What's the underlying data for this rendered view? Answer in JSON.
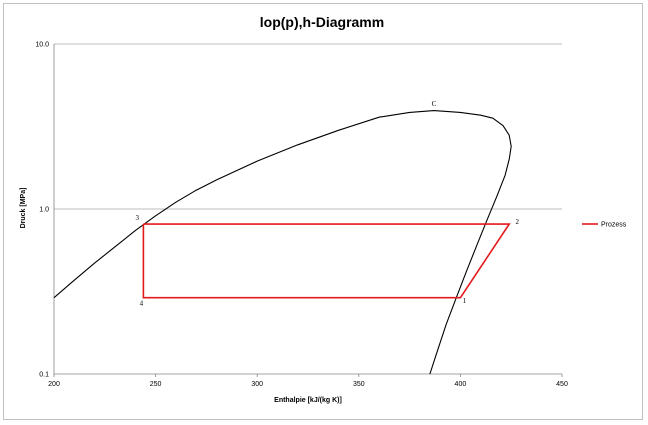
{
  "chart_data": {
    "type": "line",
    "title": "lop(p),h-Diagramm",
    "xlabel": "Enthalpie [kJ/(kg K)]",
    "ylabel": "Druck [MPa]",
    "xlim": [
      200,
      450
    ],
    "ylim": [
      0.1,
      10.0
    ],
    "y_scale": "log",
    "x_ticks": [
      200,
      250,
      300,
      350,
      400,
      450
    ],
    "y_ticks": [
      {
        "value": 0.1,
        "label": "0.1"
      },
      {
        "value": 1.0,
        "label": "1.0"
      },
      {
        "value": 10.0,
        "label": "10.0"
      }
    ],
    "grid": "horizontal major lines at 1.0 and 10.0",
    "legend_position": "right",
    "colors": {
      "curve": "#000000",
      "process": "#e31a1c",
      "grid": "#a6a6a6"
    },
    "series": [
      {
        "kind": "saturation_curve",
        "points": [
          [
            200,
            0.29
          ],
          [
            210,
            0.37
          ],
          [
            220,
            0.47
          ],
          [
            230,
            0.59
          ],
          [
            240,
            0.74
          ],
          [
            250,
            0.91
          ],
          [
            260,
            1.1
          ],
          [
            270,
            1.3
          ],
          [
            280,
            1.5
          ],
          [
            300,
            1.95
          ],
          [
            320,
            2.45
          ],
          [
            340,
            3.0
          ],
          [
            360,
            3.6
          ],
          [
            375,
            3.85
          ],
          [
            387,
            3.95
          ],
          [
            400,
            3.85
          ],
          [
            410,
            3.7
          ],
          [
            416,
            3.55
          ],
          [
            421,
            3.2
          ],
          [
            424,
            2.8
          ],
          [
            425,
            2.4
          ],
          [
            424,
            2.0
          ],
          [
            422,
            1.6
          ],
          [
            418,
            1.2
          ],
          [
            413,
            0.85
          ],
          [
            408,
            0.6
          ],
          [
            403,
            0.42
          ],
          [
            398,
            0.29
          ],
          [
            393,
            0.2
          ],
          [
            388,
            0.13
          ],
          [
            385,
            0.1
          ]
        ]
      },
      {
        "kind": "process",
        "name": "Prozess",
        "points": [
          [
            244,
            0.81
          ],
          [
            424,
            0.81
          ],
          [
            400,
            0.29
          ],
          [
            244,
            0.29
          ],
          [
            244,
            0.81
          ]
        ]
      }
    ],
    "annotations": [
      {
        "text": "C",
        "x": 387,
        "y": 4.2
      },
      {
        "text": "3",
        "x": 241,
        "y": 0.86
      },
      {
        "text": "2",
        "x": 428,
        "y": 0.81
      },
      {
        "text": "1",
        "x": 402,
        "y": 0.27
      },
      {
        "text": "4",
        "x": 243,
        "y": 0.26
      }
    ]
  }
}
